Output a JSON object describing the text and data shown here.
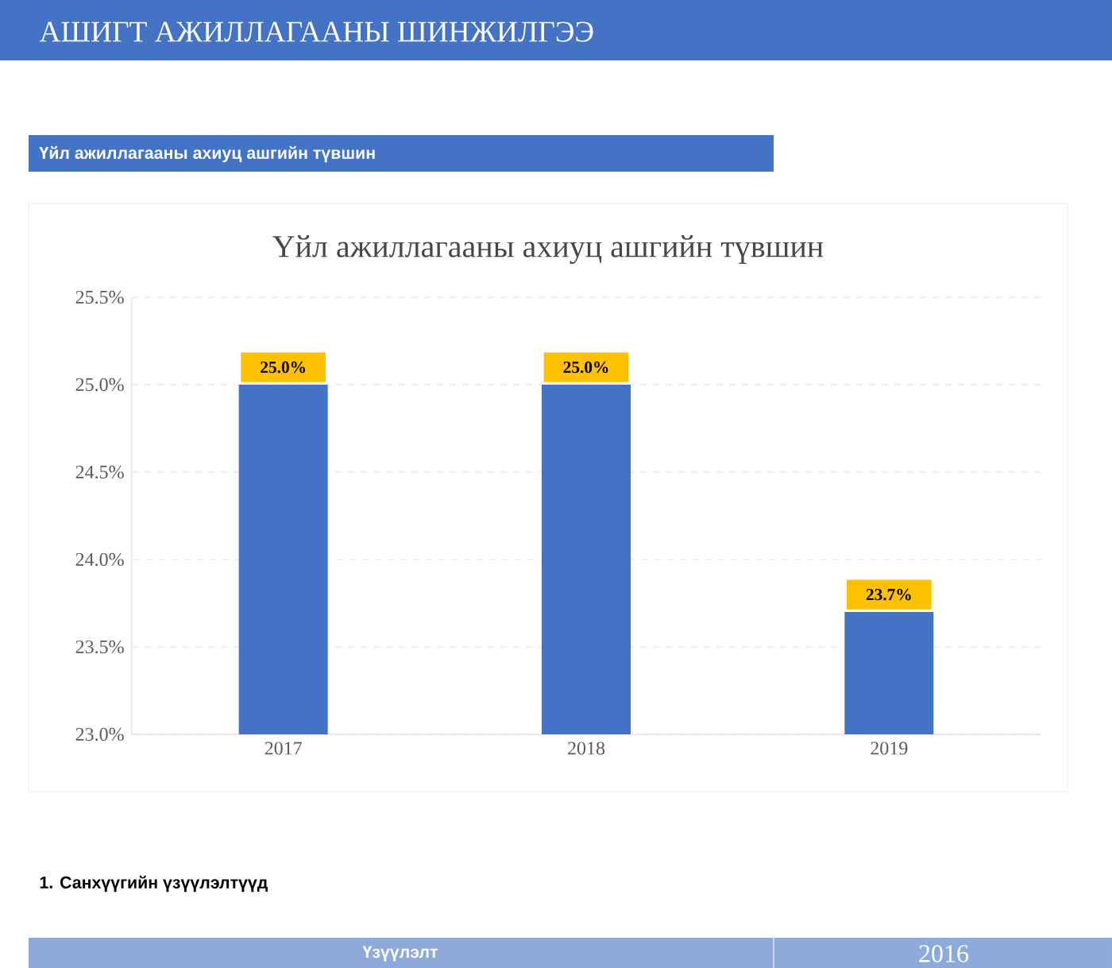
{
  "chart_data": {
    "type": "bar",
    "title": "Үйл ажиллагааны ахиуц ашгийн түвшин",
    "annotations": [
      "АШИГТ АЖИЛЛАГААНЫ ШИНЖИЛГЭЭ",
      "Үйл ажиллагааны ахиуц ашгийн түвшин",
      "1. Санхүүгийн үзүүлэлтүүд",
      "Үзүүлэлт",
      "2016"
    ],
    "categories": [
      "2017",
      "2018",
      "2019"
    ],
    "values": [
      25.0,
      25.0,
      23.7
    ],
    "value_labels": [
      "25.0%",
      "25.0%",
      "23.7%"
    ],
    "color": "#4472c4",
    "ylim": [
      23.0,
      25.5
    ],
    "yticks": [
      {
        "value": 23.0,
        "label": "23.0%"
      },
      {
        "value": 23.5,
        "label": "23.5%"
      },
      {
        "value": 24.0,
        "label": "24.0%"
      },
      {
        "value": 24.5,
        "label": "24.5%"
      },
      {
        "value": 25.0,
        "label": "25.0%"
      },
      {
        "value": 25.5,
        "label": "25.5%"
      }
    ],
    "grid": "y"
  }
}
